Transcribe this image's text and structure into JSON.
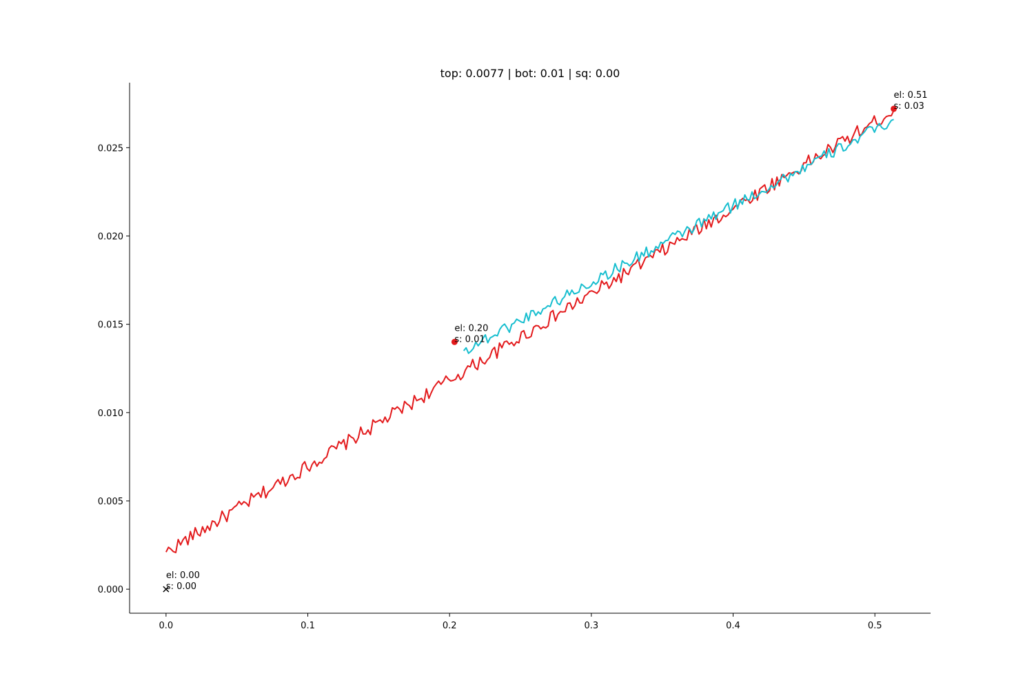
{
  "chart_data": {
    "type": "line",
    "title": "top: 0.0077 | bot: 0.01 | sq: 0.00",
    "xlabel": "",
    "ylabel": "",
    "xlim": [
      -0.0257,
      0.5393
    ],
    "ylim": [
      -0.00136,
      0.02868
    ],
    "x_ticks": [
      0.0,
      0.1,
      0.2,
      0.3,
      0.4,
      0.5
    ],
    "y_ticks": [
      0.0,
      0.005,
      0.01,
      0.015,
      0.02,
      0.025
    ],
    "x_tick_labels": [
      "0.0",
      "0.1",
      "0.2",
      "0.3",
      "0.4",
      "0.5"
    ],
    "y_tick_labels": [
      "0.000",
      "0.005",
      "0.010",
      "0.015",
      "0.020",
      "0.025"
    ],
    "grid": false,
    "spines": [
      "left",
      "bottom"
    ],
    "series": [
      {
        "color": "#e31a1c",
        "x_start": 0.0,
        "x_end": 0.5133,
        "y_start": 0.0021,
        "y_end": 0.0271,
        "n_points": 300,
        "noise_amplitude": 0.0004
      },
      {
        "color": "#17becf",
        "x_start": 0.21,
        "x_end": 0.5133,
        "y_start": 0.0135,
        "y_end": 0.0266,
        "n_points": 180,
        "noise_amplitude": 0.00035
      }
    ],
    "markers": [
      {
        "x": 0.0,
        "y": 0.0,
        "marker": "x",
        "color": "#000000"
      },
      {
        "x": 0.2035,
        "y": 0.014,
        "marker": "o",
        "color": "#e31a1c"
      },
      {
        "x": 0.5133,
        "y": 0.0272,
        "marker": "o",
        "color": "#e31a1c"
      }
    ],
    "annotations": [
      {
        "x": 0.0,
        "y": 0.0,
        "lines": [
          "el: 0.00",
          "s: 0.00"
        ]
      },
      {
        "x": 0.2035,
        "y": 0.014,
        "lines": [
          "el: 0.20",
          "s: 0.01"
        ]
      },
      {
        "x": 0.5133,
        "y": 0.0272,
        "lines": [
          "el: 0.51",
          "s: 0.03"
        ]
      }
    ]
  }
}
